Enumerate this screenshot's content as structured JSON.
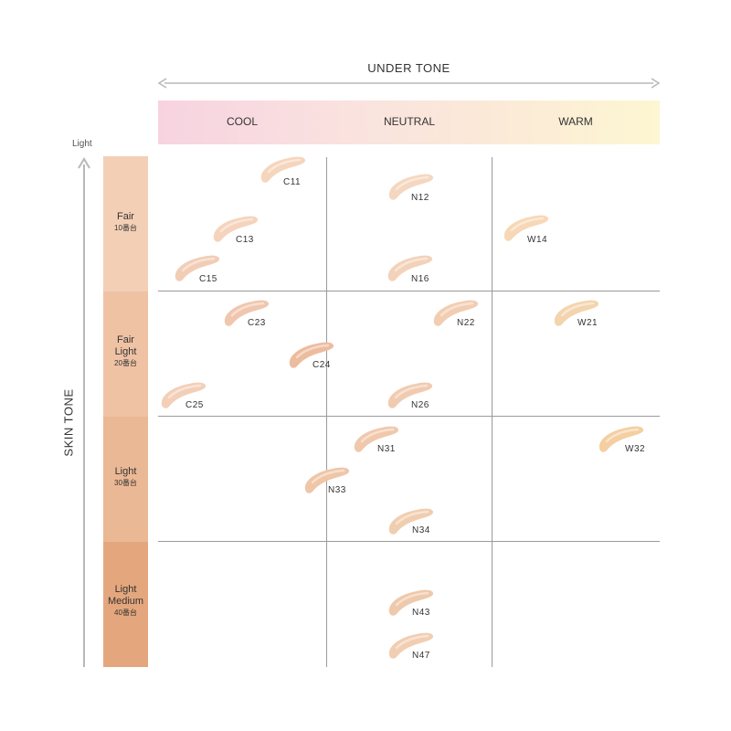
{
  "undertone": {
    "title": "UNDER TONE",
    "labels": [
      "COOL",
      "NEUTRAL",
      "WARM"
    ]
  },
  "skintone": {
    "title": "SKIN TONE",
    "light_label": "Light",
    "bands": [
      {
        "line1": "Fair",
        "line2": "",
        "sub": "10番台",
        "color": "#f3cfb6"
      },
      {
        "line1": "Fair",
        "line2": "Light",
        "sub": "20番台",
        "color": "#efc2a4"
      },
      {
        "line1": "Light",
        "line2": "",
        "sub": "30番台",
        "color": "#ebb895"
      },
      {
        "line1": "Light",
        "line2": "Medium",
        "sub": "40番台",
        "color": "#e4a77d"
      }
    ]
  },
  "shades": [
    {
      "code": "C11",
      "color": "#f6d5bd"
    },
    {
      "code": "N12",
      "color": "#f5d7bf"
    },
    {
      "code": "C13",
      "color": "#f5d3bc"
    },
    {
      "code": "W14",
      "color": "#f7d8b6"
    },
    {
      "code": "C15",
      "color": "#f2cdb6"
    },
    {
      "code": "N16",
      "color": "#f3d2ba"
    },
    {
      "code": "C23",
      "color": "#f0c6ae"
    },
    {
      "code": "N22",
      "color": "#f2cdb1"
    },
    {
      "code": "W21",
      "color": "#f4d4ad"
    },
    {
      "code": "C24",
      "color": "#edbc9f"
    },
    {
      "code": "C25",
      "color": "#f3cfb8"
    },
    {
      "code": "N26",
      "color": "#f1cbb0"
    },
    {
      "code": "N31",
      "color": "#f0c8ac"
    },
    {
      "code": "W32",
      "color": "#f4cfa2"
    },
    {
      "code": "N33",
      "color": "#efc6a8"
    },
    {
      "code": "N34",
      "color": "#f1cdb0"
    },
    {
      "code": "N43",
      "color": "#efc9ab"
    },
    {
      "code": "N47",
      "color": "#f1ceb2"
    }
  ],
  "colors": {
    "grid": "#9a9a9a",
    "arrow": "#b8b8b8"
  }
}
